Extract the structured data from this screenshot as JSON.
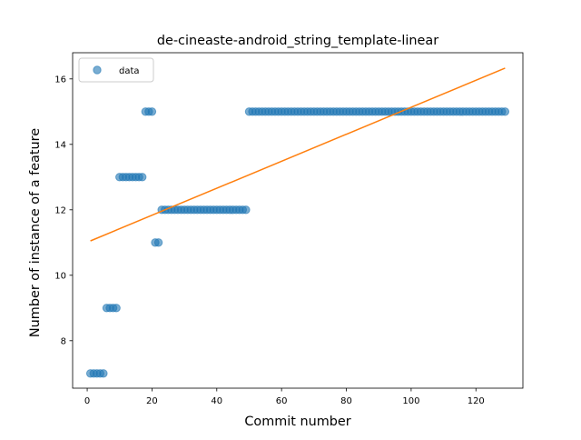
{
  "chart_data": {
    "type": "scatter",
    "title": "de-cineaste-android_string_template-linear",
    "xlabel": "Commit number",
    "ylabel": "Number of instance of a feature",
    "xlim": [
      -4.5,
      134.5
    ],
    "ylim": [
      6.55,
      16.8
    ],
    "x_ticks": [
      0,
      20,
      40,
      60,
      80,
      100,
      120
    ],
    "y_ticks": [
      8,
      10,
      12,
      14,
      16
    ],
    "grid": false,
    "legend_position": "top-left",
    "series": [
      {
        "name": "data",
        "kind": "points",
        "color": "#1f77b4",
        "points": [
          [
            1,
            7
          ],
          [
            2,
            7
          ],
          [
            3,
            7
          ],
          [
            4,
            7
          ],
          [
            5,
            7
          ],
          [
            6,
            9
          ],
          [
            7,
            9
          ],
          [
            8,
            9
          ],
          [
            9,
            9
          ],
          [
            10,
            13
          ],
          [
            11,
            13
          ],
          [
            12,
            13
          ],
          [
            13,
            13
          ],
          [
            14,
            13
          ],
          [
            15,
            13
          ],
          [
            16,
            13
          ],
          [
            17,
            13
          ],
          [
            18,
            15
          ],
          [
            19,
            15
          ],
          [
            20,
            15
          ],
          [
            21,
            11
          ],
          [
            22,
            11
          ],
          [
            23,
            12
          ],
          [
            24,
            12
          ],
          [
            25,
            12
          ],
          [
            26,
            12
          ],
          [
            27,
            12
          ],
          [
            28,
            12
          ],
          [
            29,
            12
          ],
          [
            30,
            12
          ],
          [
            31,
            12
          ],
          [
            32,
            12
          ],
          [
            33,
            12
          ],
          [
            34,
            12
          ],
          [
            35,
            12
          ],
          [
            36,
            12
          ],
          [
            37,
            12
          ],
          [
            38,
            12
          ],
          [
            39,
            12
          ],
          [
            40,
            12
          ],
          [
            41,
            12
          ],
          [
            42,
            12
          ],
          [
            43,
            12
          ],
          [
            44,
            12
          ],
          [
            45,
            12
          ],
          [
            46,
            12
          ],
          [
            47,
            12
          ],
          [
            48,
            12
          ],
          [
            49,
            12
          ],
          [
            50,
            15
          ],
          [
            51,
            15
          ],
          [
            52,
            15
          ],
          [
            53,
            15
          ],
          [
            54,
            15
          ],
          [
            55,
            15
          ],
          [
            56,
            15
          ],
          [
            57,
            15
          ],
          [
            58,
            15
          ],
          [
            59,
            15
          ],
          [
            60,
            15
          ],
          [
            61,
            15
          ],
          [
            62,
            15
          ],
          [
            63,
            15
          ],
          [
            64,
            15
          ],
          [
            65,
            15
          ],
          [
            66,
            15
          ],
          [
            67,
            15
          ],
          [
            68,
            15
          ],
          [
            69,
            15
          ],
          [
            70,
            15
          ],
          [
            71,
            15
          ],
          [
            72,
            15
          ],
          [
            73,
            15
          ],
          [
            74,
            15
          ],
          [
            75,
            15
          ],
          [
            76,
            15
          ],
          [
            77,
            15
          ],
          [
            78,
            15
          ],
          [
            79,
            15
          ],
          [
            80,
            15
          ],
          [
            81,
            15
          ],
          [
            82,
            15
          ],
          [
            83,
            15
          ],
          [
            84,
            15
          ],
          [
            85,
            15
          ],
          [
            86,
            15
          ],
          [
            87,
            15
          ],
          [
            88,
            15
          ],
          [
            89,
            15
          ],
          [
            90,
            15
          ],
          [
            91,
            15
          ],
          [
            92,
            15
          ],
          [
            93,
            15
          ],
          [
            94,
            15
          ],
          [
            95,
            15
          ],
          [
            96,
            15
          ],
          [
            97,
            15
          ],
          [
            98,
            15
          ],
          [
            99,
            15
          ],
          [
            100,
            15
          ],
          [
            101,
            15
          ],
          [
            102,
            15
          ],
          [
            103,
            15
          ],
          [
            104,
            15
          ],
          [
            105,
            15
          ],
          [
            106,
            15
          ],
          [
            107,
            15
          ],
          [
            108,
            15
          ],
          [
            109,
            15
          ],
          [
            110,
            15
          ],
          [
            111,
            15
          ],
          [
            112,
            15
          ],
          [
            113,
            15
          ],
          [
            114,
            15
          ],
          [
            115,
            15
          ],
          [
            116,
            15
          ],
          [
            117,
            15
          ],
          [
            118,
            15
          ],
          [
            119,
            15
          ],
          [
            120,
            15
          ],
          [
            121,
            15
          ],
          [
            122,
            15
          ],
          [
            123,
            15
          ],
          [
            124,
            15
          ],
          [
            125,
            15
          ],
          [
            126,
            15
          ],
          [
            127,
            15
          ],
          [
            128,
            15
          ],
          [
            129,
            15
          ]
        ]
      },
      {
        "kind": "line",
        "color": "#ff7f0e",
        "points": [
          [
            1,
            11.05
          ],
          [
            129,
            16.33
          ]
        ]
      }
    ]
  }
}
